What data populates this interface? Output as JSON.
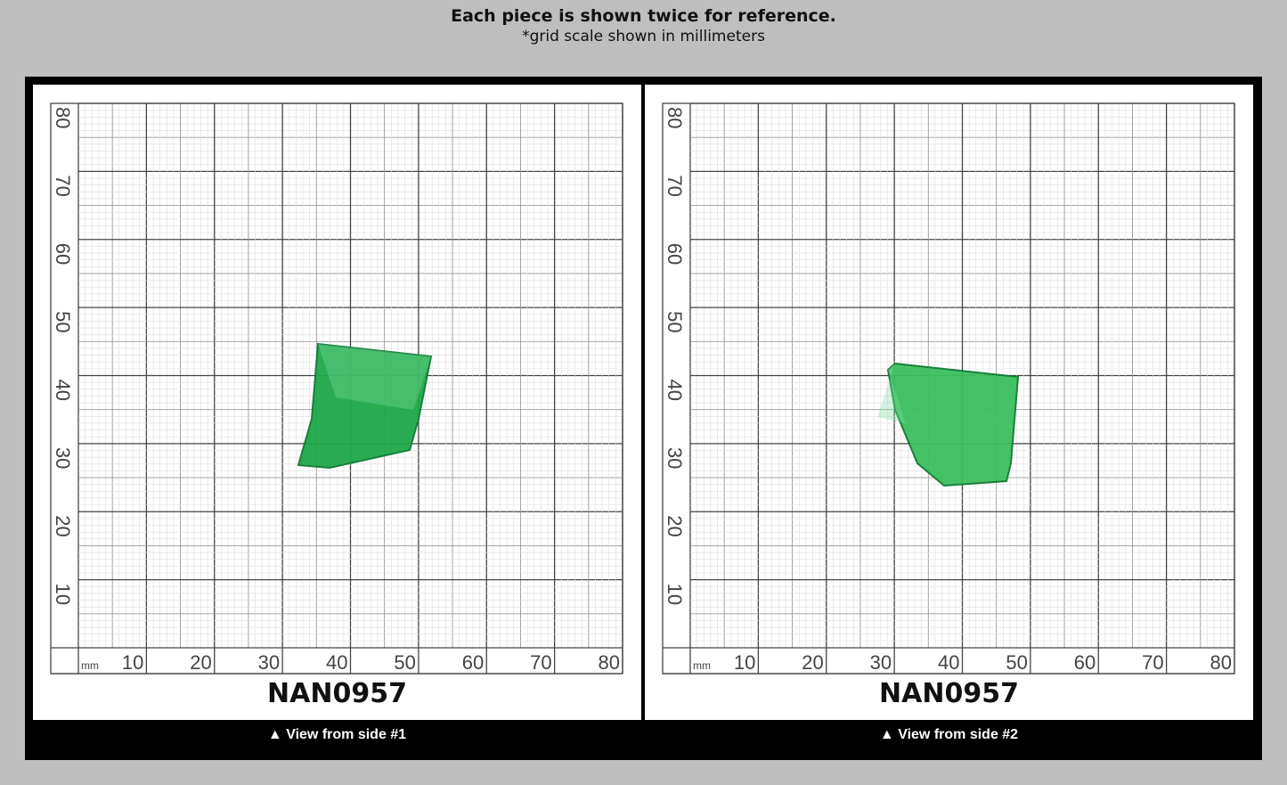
{
  "header": {
    "title": "Each piece is shown twice for reference.",
    "subtitle": "*grid scale shown in millimeters"
  },
  "grid": {
    "unit": "mm",
    "x_ticks": [
      "10",
      "20",
      "30",
      "40",
      "50",
      "60",
      "70",
      "80"
    ],
    "y_ticks": [
      "10",
      "20",
      "30",
      "40",
      "50",
      "60",
      "70",
      "80"
    ]
  },
  "panels": [
    {
      "code": "NAN0957",
      "caption": "▲ View from side #1",
      "gem_color": "#1fa84a"
    },
    {
      "code": "NAN0957",
      "caption": "▲ View from side #2",
      "gem_color": "#3cbf5e"
    }
  ]
}
